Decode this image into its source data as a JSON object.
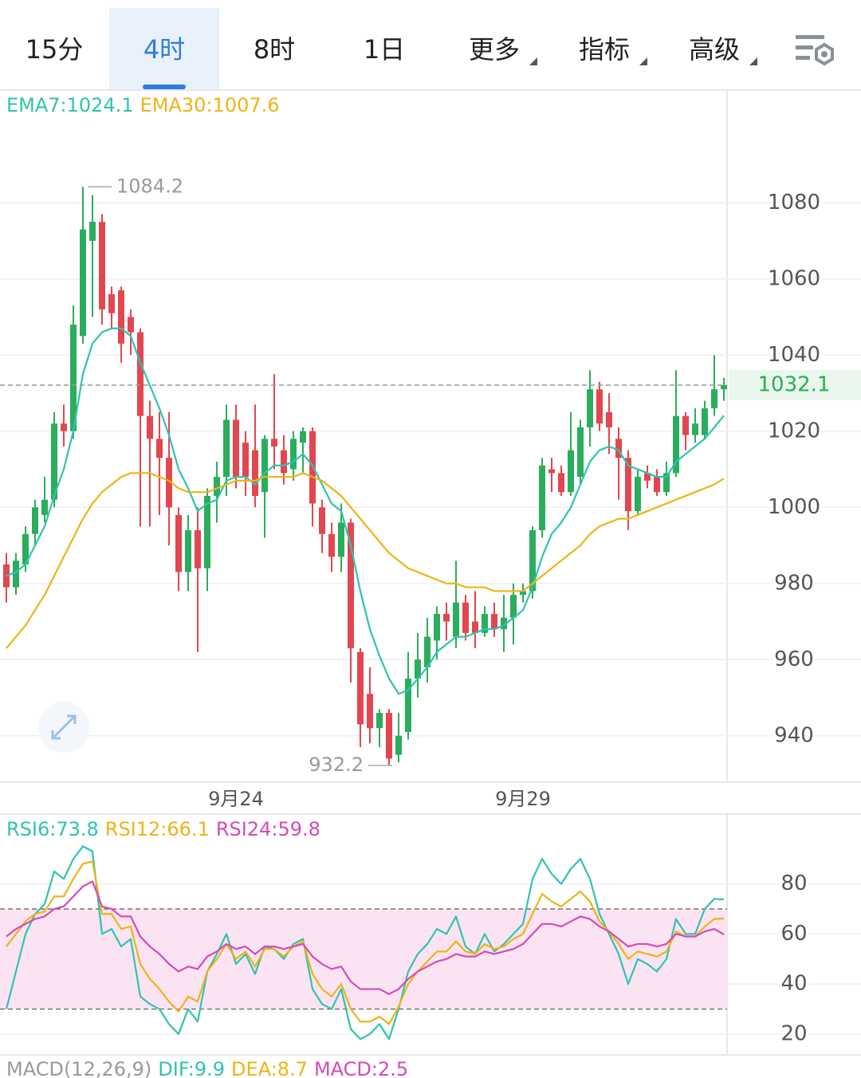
{
  "tabs": {
    "items": [
      "15分",
      "4时",
      "8时",
      "1日",
      "更多",
      "指标",
      "高级"
    ],
    "active": 1,
    "dropdown_from": 4
  },
  "chart_data": [
    {
      "type": "candlestick",
      "categories": [
        null,
        null,
        null,
        null,
        null,
        null,
        null,
        null,
        null,
        null,
        null,
        null,
        null,
        null,
        null,
        null,
        null,
        null,
        null,
        null,
        null,
        null,
        null,
        null,
        "9月24",
        null,
        null,
        null,
        null,
        null,
        null,
        null,
        null,
        null,
        null,
        null,
        null,
        null,
        null,
        null,
        null,
        null,
        null,
        null,
        null,
        null,
        null,
        null,
        null,
        null,
        null,
        null,
        null,
        null,
        "9月29",
        null,
        null,
        null,
        null,
        null,
        null,
        null,
        null,
        null,
        null,
        null,
        null,
        null,
        null,
        null,
        null,
        null,
        null,
        null,
        null,
        null
      ],
      "open": [
        985,
        979,
        985,
        993,
        998,
        1002,
        1022,
        1020,
        1045,
        1070,
        1075,
        1056,
        1057,
        1050,
        1046,
        1024,
        1018,
        1013,
        998,
        983,
        994,
        984,
        1003,
        1008,
        1023,
        1017,
        1015,
        1004,
        1018,
        1015,
        1010,
        1017,
        1020,
        1000,
        993,
        987,
        996,
        962,
        951,
        942,
        946,
        935,
        941,
        955,
        958,
        965,
        972,
        966,
        975,
        970,
        967,
        972,
        968,
        971,
        977,
        978,
        994,
        1010,
        1009,
        1004,
        1008,
        1021,
        1031,
        1025,
        1018,
        1013,
        999,
        1009,
        1008,
        1004,
        1009,
        1024,
        1019,
        1019,
        1026,
        1031
      ],
      "high": [
        988,
        988,
        995,
        1002,
        1008,
        1025,
        1027,
        1053,
        1084.2,
        1082,
        1077,
        1058,
        1058,
        1052,
        1047,
        1028,
        1025,
        1025,
        1000,
        998,
        1000,
        1005,
        1012,
        1027,
        1027,
        1020,
        1027,
        1019,
        1035,
        1019,
        1020,
        1021,
        1021,
        1002,
        996,
        1001,
        997,
        963,
        958,
        947,
        947,
        946,
        962,
        967,
        971,
        974,
        975,
        986,
        977,
        978,
        974,
        975,
        977,
        980,
        980,
        995,
        1013,
        1013,
        1011,
        1025,
        1023,
        1036,
        1033,
        1030,
        1021,
        1015,
        1010,
        1011,
        1010,
        1012,
        1036,
        1025,
        1026,
        1028,
        1040,
        1034
      ],
      "low": [
        975,
        977,
        983,
        990,
        996,
        1000,
        1016,
        1018,
        1043,
        1050,
        1048,
        1047,
        1038,
        1040,
        995,
        995,
        998,
        990,
        978,
        978,
        962,
        978,
        996,
        1003,
        1005,
        1003,
        1000,
        992,
        1010,
        1006,
        1007,
        1009,
        995,
        988,
        983,
        983,
        954,
        937,
        938,
        937,
        932.2,
        933,
        939,
        950,
        954,
        960,
        965,
        963,
        965,
        963,
        966,
        966,
        962,
        964,
        975,
        976,
        992,
        1004,
        1003,
        1003,
        1006,
        1016,
        1020,
        1014,
        1002,
        994,
        998,
        1005,
        1003,
        1003,
        1008,
        1015,
        1017,
        1018,
        1024,
        1028
      ],
      "close": [
        979,
        986,
        993,
        1000,
        1002,
        1022,
        1020,
        1048,
        1073,
        1075,
        1052,
        1051,
        1043,
        1046,
        1024,
        1018,
        1013,
        1000,
        983,
        994,
        984,
        1003,
        1008,
        1023,
        1008,
        1008,
        1003,
        1018,
        1016,
        1009,
        1018,
        1020,
        1001,
        993,
        987,
        996,
        963,
        943,
        942,
        946,
        934,
        940,
        955,
        960,
        966,
        972,
        970,
        975,
        967,
        967,
        972,
        968,
        971,
        977,
        978,
        994,
        1011,
        1009,
        1004,
        1015,
        1021,
        1031,
        1022,
        1021,
        1013,
        999,
        1008,
        1007,
        1004,
        1009,
        1024,
        1019,
        1022,
        1026,
        1031,
        1032.1
      ],
      "up_color": "#2aad5c",
      "down_color": "#e2474f",
      "series": [
        {
          "name": "EMA7:1024.1",
          "color": "#2ec4b0",
          "values": [
            982,
            983,
            985,
            990,
            995,
            1003,
            1010,
            1020,
            1035,
            1043,
            1046,
            1047,
            1047,
            1045,
            1038,
            1032,
            1026,
            1019,
            1010,
            1005,
            999,
            1001,
            1002,
            1007,
            1008,
            1008,
            1006,
            1009,
            1011,
            1011,
            1012,
            1014,
            1011,
            1006,
            1001,
            999,
            990,
            978,
            968,
            961,
            955,
            951,
            952,
            955,
            958,
            962,
            964,
            966,
            966,
            967,
            968,
            968,
            969,
            971,
            973,
            979,
            987,
            993,
            996,
            1000,
            1006,
            1012,
            1015,
            1016,
            1015,
            1011,
            1010,
            1009,
            1008,
            1008,
            1012,
            1014,
            1016,
            1018,
            1021,
            1024.1
          ]
        },
        {
          "name": "EMA30:1007.6",
          "color": "#eeb416",
          "values": [
            963,
            966,
            969,
            973,
            977,
            982,
            987,
            992,
            997,
            1001,
            1004,
            1006,
            1008,
            1009,
            1009,
            1009,
            1008,
            1007,
            1005,
            1004,
            1004,
            1004,
            1005,
            1006,
            1007,
            1007,
            1007,
            1008,
            1008,
            1008,
            1008,
            1009,
            1008,
            1007,
            1005,
            1003,
            1000,
            997,
            994,
            991,
            988,
            986,
            984,
            983,
            982,
            981,
            980,
            980,
            979,
            979,
            979,
            978,
            978,
            978,
            978,
            980,
            982,
            984,
            986,
            988,
            990,
            993,
            995,
            996,
            997,
            997,
            998,
            999,
            1000,
            1001,
            1002,
            1003,
            1004,
            1005,
            1006,
            1007.6
          ]
        }
      ],
      "ylim": [
        927.8,
        1109.6
      ],
      "yticks": [
        940,
        960,
        980,
        1000,
        1020,
        1040,
        1060,
        1080
      ],
      "grid": true,
      "max_label": 1084.2,
      "min_label": 932.2,
      "last_price": 1032.1
    },
    {
      "type": "line",
      "series": [
        {
          "name": "RSI6:73.8",
          "color": "#2ec4b0",
          "values": [
            30,
            45,
            60,
            68,
            72,
            85,
            82,
            90,
            95,
            93,
            60,
            62,
            55,
            58,
            35,
            32,
            30,
            24,
            20,
            30,
            25,
            45,
            52,
            60,
            48,
            52,
            44,
            55,
            54,
            50,
            56,
            58,
            38,
            32,
            30,
            38,
            22,
            18,
            20,
            24,
            18,
            30,
            45,
            52,
            56,
            62,
            60,
            67,
            55,
            52,
            60,
            53,
            56,
            60,
            64,
            82,
            90,
            84,
            80,
            86,
            90,
            82,
            68,
            60,
            52,
            40,
            50,
            48,
            45,
            50,
            66,
            60,
            60,
            70,
            74,
            73.8
          ]
        },
        {
          "name": "RSI12:66.1",
          "color": "#eeb416",
          "values": [
            55,
            60,
            65,
            68,
            69,
            75,
            75,
            82,
            88,
            89,
            68,
            68,
            62,
            63,
            48,
            42,
            38,
            33,
            29,
            35,
            33,
            45,
            50,
            56,
            50,
            53,
            47,
            54,
            54,
            51,
            55,
            57,
            44,
            38,
            35,
            40,
            30,
            25,
            25,
            27,
            24,
            31,
            40,
            45,
            49,
            53,
            53,
            57,
            53,
            52,
            56,
            54,
            55,
            58,
            60,
            68,
            76,
            73,
            71,
            74,
            77,
            73,
            65,
            61,
            56,
            50,
            53,
            52,
            51,
            53,
            61,
            59,
            59,
            63,
            66,
            66.1
          ]
        },
        {
          "name": "RSI24:59.8",
          "color": "#d64bb4",
          "values": [
            59,
            62,
            64,
            66,
            67,
            70,
            71,
            75,
            79,
            81,
            71,
            70,
            67,
            67,
            59,
            55,
            52,
            48,
            45,
            47,
            46,
            51,
            53,
            56,
            54,
            55,
            52,
            55,
            55,
            54,
            55,
            56,
            51,
            48,
            46,
            47,
            41,
            38,
            38,
            38,
            36,
            38,
            42,
            45,
            47,
            49,
            50,
            52,
            51,
            51,
            53,
            52,
            53,
            54,
            56,
            60,
            64,
            64,
            63,
            65,
            67,
            66,
            63,
            61,
            58,
            55,
            56,
            56,
            55,
            56,
            60,
            59,
            59,
            61,
            62,
            59.8
          ]
        }
      ],
      "ylim": [
        11.7,
        107.9
      ],
      "yticks": [
        20,
        40,
        60,
        80
      ],
      "grid": true,
      "bands": [
        30,
        70
      ],
      "band_color": "#fbe3f4"
    }
  ],
  "macd_legend": {
    "items": [
      "MACD(12,26,9)",
      "DIF:9.9",
      "DEA:8.7",
      "MACD:2.5"
    ],
    "colors": [
      "#999999",
      "#2ec4b0",
      "#eeb416",
      "#d64bb4"
    ]
  }
}
